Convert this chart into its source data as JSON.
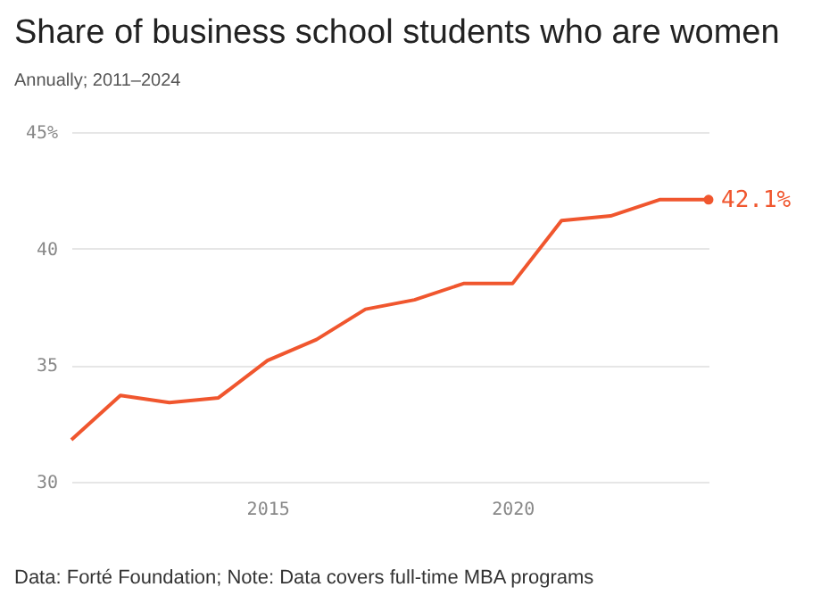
{
  "chart_data": {
    "type": "line",
    "title": "Share of business school students who are women",
    "subtitle": "Annually; 2011–2024",
    "x": [
      2011,
      2012,
      2013,
      2014,
      2015,
      2016,
      2017,
      2018,
      2019,
      2020,
      2021,
      2022,
      2023,
      2024
    ],
    "series": [
      {
        "color": "#f0562e",
        "values": [
          31.8,
          33.7,
          33.4,
          33.6,
          35.2,
          36.1,
          37.4,
          37.8,
          38.5,
          38.5,
          41.2,
          41.4,
          42.1,
          42.1
        ]
      }
    ],
    "xlim": [
      2011,
      2024
    ],
    "xticks": [
      2015,
      2020
    ],
    "ylim": [
      30,
      45
    ],
    "yticks": [
      30,
      35,
      40,
      {
        "value": 45,
        "label": "45%"
      }
    ],
    "grid": "y",
    "line_style": "solid",
    "annotations": [
      {
        "text": "42.1%",
        "x": 2024,
        "y": 42.1
      },
      "Data: Forté Foundation; Note: Data covers full-time MBA programs"
    ]
  }
}
